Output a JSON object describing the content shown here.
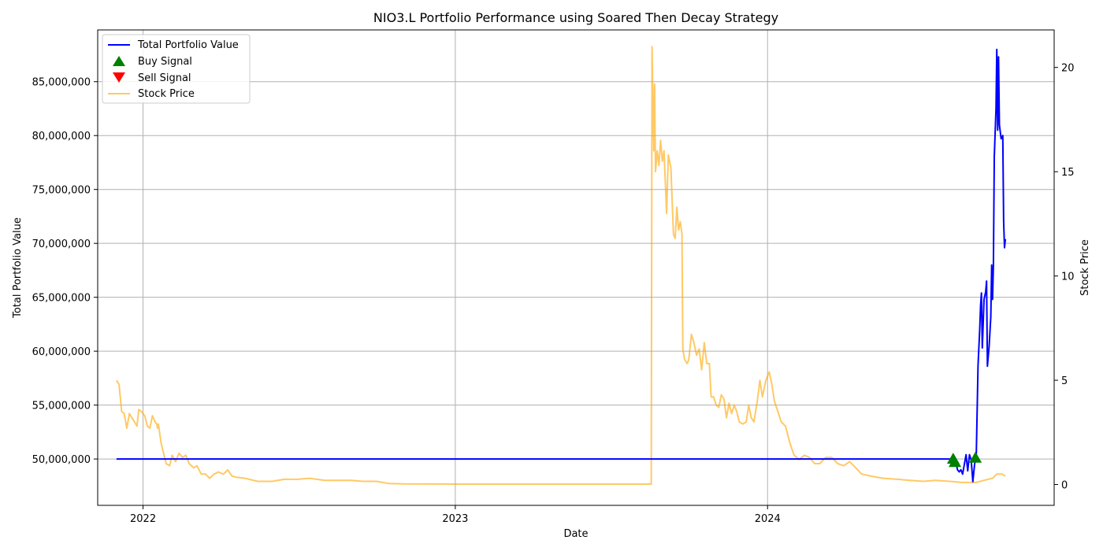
{
  "chart_data": {
    "type": "line",
    "title": "NIO3.L Portfolio Performance using Soared Then Decay Strategy",
    "xlabel": "Date",
    "ylabel": "Total Portfolio Value",
    "ylabel_right": "Stock Price",
    "x_ticks": [
      "2022",
      "2023",
      "2024"
    ],
    "x_tick_dates": [
      "2022-01-01",
      "2023-01-01",
      "2024-01-01"
    ],
    "xlim": [
      "2021-11-09",
      "2024-12-01"
    ],
    "ylim": [
      45700000,
      89800000
    ],
    "y_ticks": [
      50000000,
      55000000,
      60000000,
      65000000,
      70000000,
      75000000,
      80000000,
      85000000
    ],
    "y_tick_labels": [
      "50,000,000",
      "55,000,000",
      "60,000,000",
      "65,000,000",
      "70,000,000",
      "75,000,000",
      "80,000,000",
      "85,000,000"
    ],
    "ylim_right": [
      -1.0,
      21.8
    ],
    "y_ticks_right": [
      0,
      5,
      10,
      15,
      20
    ],
    "y_tick_labels_right": [
      "0",
      "5",
      "10",
      "15",
      "20"
    ],
    "grid": true,
    "legend_position": "top-left",
    "colors": {
      "portfolio": "#0000ff",
      "buy": "#008000",
      "sell": "#ff0000",
      "price": "#ffa500"
    },
    "series": [
      {
        "name": "Total Portfolio Value",
        "axis": "left",
        "points": [
          [
            "2021-12-01",
            50000000
          ],
          [
            "2024-08-05",
            50000000
          ],
          [
            "2024-08-08",
            49800000
          ],
          [
            "2024-08-10",
            49000000
          ],
          [
            "2024-08-12",
            48800000
          ],
          [
            "2024-08-14",
            49000000
          ],
          [
            "2024-08-16",
            48600000
          ],
          [
            "2024-08-18",
            49500000
          ],
          [
            "2024-08-20",
            50400000
          ],
          [
            "2024-08-22",
            48900000
          ],
          [
            "2024-08-24",
            50400000
          ],
          [
            "2024-08-26",
            49900000
          ],
          [
            "2024-08-28",
            47900000
          ],
          [
            "2024-08-30",
            49500000
          ],
          [
            "2024-09-01",
            50500000
          ],
          [
            "2024-09-03",
            58700000
          ],
          [
            "2024-09-05",
            62000000
          ],
          [
            "2024-09-06",
            64200000
          ],
          [
            "2024-09-07",
            65400000
          ],
          [
            "2024-09-08",
            60300000
          ],
          [
            "2024-09-10",
            64800000
          ],
          [
            "2024-09-12",
            65500000
          ],
          [
            "2024-09-13",
            66500000
          ],
          [
            "2024-09-14",
            58600000
          ],
          [
            "2024-09-16",
            60500000
          ],
          [
            "2024-09-18",
            63200000
          ],
          [
            "2024-09-19",
            68000000
          ],
          [
            "2024-09-20",
            64800000
          ],
          [
            "2024-09-21",
            68000000
          ],
          [
            "2024-09-22",
            78000000
          ],
          [
            "2024-09-24",
            82500000
          ],
          [
            "2024-09-25",
            88000000
          ],
          [
            "2024-09-26",
            80500000
          ],
          [
            "2024-09-27",
            87300000
          ],
          [
            "2024-09-28",
            81000000
          ],
          [
            "2024-09-30",
            79700000
          ],
          [
            "2024-10-02",
            80000000
          ],
          [
            "2024-10-03",
            72000000
          ],
          [
            "2024-10-04",
            69600000
          ],
          [
            "2024-10-05",
            70400000
          ]
        ]
      },
      {
        "name": "Buy Signal",
        "axis": "left",
        "marker": "triangle-up",
        "points": [
          [
            "2024-08-05",
            50000000
          ],
          [
            "2024-08-07",
            49700000
          ],
          [
            "2024-08-31",
            50100000
          ]
        ]
      },
      {
        "name": "Sell Signal",
        "axis": "left",
        "marker": "triangle-down",
        "points": []
      },
      {
        "name": "Stock Price",
        "axis": "right",
        "points": [
          [
            "2021-12-01",
            5.0
          ],
          [
            "2021-12-04",
            4.8
          ],
          [
            "2021-12-07",
            3.5
          ],
          [
            "2021-12-10",
            3.4
          ],
          [
            "2021-12-13",
            2.7
          ],
          [
            "2021-12-16",
            3.4
          ],
          [
            "2021-12-19",
            3.2
          ],
          [
            "2021-12-22",
            3.0
          ],
          [
            "2021-12-25",
            2.8
          ],
          [
            "2021-12-27",
            3.6
          ],
          [
            "2021-12-30",
            3.5
          ],
          [
            "2022-01-03",
            3.3
          ],
          [
            "2022-01-06",
            2.8
          ],
          [
            "2022-01-09",
            2.7
          ],
          [
            "2022-01-12",
            3.3
          ],
          [
            "2022-01-15",
            3.0
          ],
          [
            "2022-01-17",
            2.9
          ],
          [
            "2022-01-18",
            2.7
          ],
          [
            "2022-01-19",
            2.9
          ],
          [
            "2022-01-22",
            2.0
          ],
          [
            "2022-01-25",
            1.5
          ],
          [
            "2022-01-28",
            1.0
          ],
          [
            "2022-02-01",
            0.9
          ],
          [
            "2022-02-04",
            1.4
          ],
          [
            "2022-02-08",
            1.1
          ],
          [
            "2022-02-12",
            1.5
          ],
          [
            "2022-02-16",
            1.3
          ],
          [
            "2022-02-20",
            1.4
          ],
          [
            "2022-02-24",
            1.0
          ],
          [
            "2022-03-01",
            0.8
          ],
          [
            "2022-03-05",
            0.9
          ],
          [
            "2022-03-10",
            0.5
          ],
          [
            "2022-03-15",
            0.5
          ],
          [
            "2022-03-20",
            0.3
          ],
          [
            "2022-03-25",
            0.5
          ],
          [
            "2022-03-30",
            0.6
          ],
          [
            "2022-04-05",
            0.5
          ],
          [
            "2022-04-10",
            0.7
          ],
          [
            "2022-04-15",
            0.4
          ],
          [
            "2022-04-20",
            0.35
          ],
          [
            "2022-04-30",
            0.3
          ],
          [
            "2022-05-15",
            0.15
          ],
          [
            "2022-06-01",
            0.15
          ],
          [
            "2022-06-15",
            0.25
          ],
          [
            "2022-07-01",
            0.25
          ],
          [
            "2022-07-15",
            0.3
          ],
          [
            "2022-08-01",
            0.2
          ],
          [
            "2022-08-15",
            0.2
          ],
          [
            "2022-09-01",
            0.2
          ],
          [
            "2022-09-15",
            0.15
          ],
          [
            "2022-10-01",
            0.15
          ],
          [
            "2022-10-15",
            0.05
          ],
          [
            "2022-11-01",
            0.03
          ],
          [
            "2023-01-01",
            0.02
          ],
          [
            "2023-04-01",
            0.02
          ],
          [
            "2023-06-01",
            0.02
          ],
          [
            "2023-08-18",
            0.02
          ],
          [
            "2023-08-19",
            21.0
          ],
          [
            "2023-08-21",
            16.0
          ],
          [
            "2023-08-22",
            19.2
          ],
          [
            "2023-08-23",
            15.0
          ],
          [
            "2023-08-25",
            16.0
          ],
          [
            "2023-08-27",
            15.3
          ],
          [
            "2023-08-29",
            16.5
          ],
          [
            "2023-08-31",
            15.5
          ],
          [
            "2023-09-02",
            16.0
          ],
          [
            "2023-09-05",
            13.0
          ],
          [
            "2023-09-07",
            15.8
          ],
          [
            "2023-09-10",
            15.2
          ],
          [
            "2023-09-13",
            12.0
          ],
          [
            "2023-09-15",
            11.8
          ],
          [
            "2023-09-17",
            13.3
          ],
          [
            "2023-09-19",
            12.2
          ],
          [
            "2023-09-21",
            12.6
          ],
          [
            "2023-09-23",
            12.0
          ],
          [
            "2023-09-24",
            6.5
          ],
          [
            "2023-09-26",
            6.0
          ],
          [
            "2023-09-29",
            5.8
          ],
          [
            "2023-10-01",
            6.0
          ],
          [
            "2023-10-04",
            7.2
          ],
          [
            "2023-10-07",
            6.8
          ],
          [
            "2023-10-10",
            6.2
          ],
          [
            "2023-10-13",
            6.5
          ],
          [
            "2023-10-16",
            5.5
          ],
          [
            "2023-10-19",
            6.8
          ],
          [
            "2023-10-22",
            5.8
          ],
          [
            "2023-10-25",
            5.8
          ],
          [
            "2023-10-27",
            4.2
          ],
          [
            "2023-10-30",
            4.2
          ],
          [
            "2023-11-02",
            3.8
          ],
          [
            "2023-11-05",
            3.7
          ],
          [
            "2023-11-08",
            4.3
          ],
          [
            "2023-11-11",
            4.1
          ],
          [
            "2023-11-14",
            3.2
          ],
          [
            "2023-11-17",
            3.9
          ],
          [
            "2023-11-20",
            3.4
          ],
          [
            "2023-11-23",
            3.8
          ],
          [
            "2023-11-26",
            3.5
          ],
          [
            "2023-11-29",
            3.0
          ],
          [
            "2023-12-03",
            2.9
          ],
          [
            "2023-12-07",
            3.0
          ],
          [
            "2023-12-10",
            3.8
          ],
          [
            "2023-12-13",
            3.2
          ],
          [
            "2023-12-16",
            3.0
          ],
          [
            "2023-12-20",
            4.0
          ],
          [
            "2023-12-23",
            5.0
          ],
          [
            "2023-12-26",
            4.2
          ],
          [
            "2023-12-30",
            5.0
          ],
          [
            "2024-01-03",
            5.4
          ],
          [
            "2024-01-06",
            4.8
          ],
          [
            "2024-01-09",
            4.0
          ],
          [
            "2024-01-13",
            3.5
          ],
          [
            "2024-01-17",
            3.0
          ],
          [
            "2024-01-22",
            2.8
          ],
          [
            "2024-01-27",
            2.0
          ],
          [
            "2024-02-01",
            1.4
          ],
          [
            "2024-02-07",
            1.2
          ],
          [
            "2024-02-13",
            1.4
          ],
          [
            "2024-02-19",
            1.3
          ],
          [
            "2024-02-25",
            1.0
          ],
          [
            "2024-03-02",
            1.0
          ],
          [
            "2024-03-09",
            1.3
          ],
          [
            "2024-03-16",
            1.3
          ],
          [
            "2024-03-23",
            1.0
          ],
          [
            "2024-03-30",
            0.9
          ],
          [
            "2024-04-06",
            1.1
          ],
          [
            "2024-04-13",
            0.8
          ],
          [
            "2024-04-20",
            0.5
          ],
          [
            "2024-05-01",
            0.4
          ],
          [
            "2024-05-15",
            0.3
          ],
          [
            "2024-06-01",
            0.25
          ],
          [
            "2024-06-15",
            0.2
          ],
          [
            "2024-07-01",
            0.15
          ],
          [
            "2024-07-15",
            0.2
          ],
          [
            "2024-08-01",
            0.15
          ],
          [
            "2024-08-15",
            0.1
          ],
          [
            "2024-09-01",
            0.1
          ],
          [
            "2024-09-10",
            0.2
          ],
          [
            "2024-09-20",
            0.3
          ],
          [
            "2024-09-25",
            0.5
          ],
          [
            "2024-10-01",
            0.5
          ],
          [
            "2024-10-05",
            0.4
          ]
        ]
      }
    ]
  }
}
